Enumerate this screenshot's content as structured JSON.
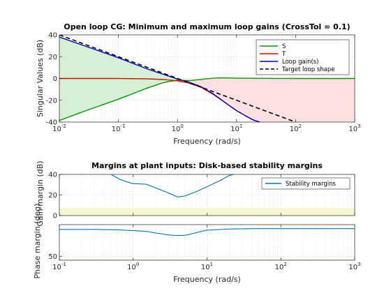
{
  "chart_data": [
    {
      "type": "line",
      "title": "Open loop CG: Minimum and maximum loop gains (CrossTol = 0.1)",
      "xlabel": "Frequency (rad/s)",
      "ylabel": "Singular Values (dB)",
      "xscale": "log",
      "xlim": [
        0.01,
        1000
      ],
      "ylim": [
        -40,
        40
      ],
      "xticks": [
        0.01,
        0.1,
        1,
        10,
        100,
        1000
      ],
      "yticks": [
        -40,
        -20,
        0,
        20,
        40
      ],
      "grid": true,
      "legend_position": "top-right",
      "series": [
        {
          "name": "S",
          "color": "#009900",
          "x": [
            0.01,
            0.03,
            0.1,
            0.3,
            0.6,
            1,
            1.6,
            2.5,
            4,
            6,
            10,
            30,
            100,
            1000
          ],
          "y": [
            -38.5,
            -29,
            -19,
            -9,
            -3.5,
            -1.5,
            -2,
            -0.8,
            0.3,
            0.6,
            0.3,
            0.1,
            0,
            0
          ]
        },
        {
          "name": "T",
          "color": "#e60000",
          "x": [
            0.01,
            0.1,
            0.3,
            0.6,
            1,
            1.5,
            2.5,
            4,
            6,
            10,
            15,
            20,
            25
          ],
          "y": [
            0,
            0,
            -0.3,
            -1,
            -2.2,
            -4,
            -8,
            -14.5,
            -21,
            -29.5,
            -35,
            -38.5,
            -40
          ]
        },
        {
          "name": "Loop gain(s)",
          "color": "#0000cc",
          "x": [
            0.01,
            0.03,
            0.1,
            0.3,
            0.6,
            1,
            1.5,
            2.5,
            4,
            6,
            10,
            15,
            20,
            25
          ],
          "y": [
            38,
            29,
            19,
            9,
            3.5,
            -0.5,
            -3,
            -7.5,
            -14,
            -21,
            -29.5,
            -35,
            -38.5,
            -40
          ]
        },
        {
          "name": "Target loop shape",
          "color": "#000000",
          "dash": "dashed",
          "x": [
            0.01,
            100
          ],
          "y": [
            40,
            -40
          ]
        }
      ],
      "shaded_regions": [
        {
          "color": "#d6f0d6",
          "between": [
            "S",
            "Loop gain(s)"
          ],
          "range": [
            0.01,
            1
          ]
        },
        {
          "color": "#fde0e0",
          "between": [
            "T",
            "S"
          ],
          "range": [
            1,
            1000
          ]
        }
      ]
    },
    {
      "type": "line",
      "title": "Margins at plant inputs: Disk-based stability margins",
      "subplot_ylabel": "Gain margin (dB)",
      "xscale": "log",
      "xlim": [
        0.1,
        1000
      ],
      "ylim": [
        0,
        40
      ],
      "yticks": [
        0,
        20,
        40
      ],
      "grid": true,
      "legend_position": "top-right",
      "series": [
        {
          "name": "Stability margins",
          "color": "#0072bd",
          "x": [
            0.5,
            0.65,
            0.8,
            1,
            1.5,
            2,
            3,
            4,
            5,
            7,
            10,
            15,
            20,
            23
          ],
          "y": [
            40,
            35.5,
            33,
            31,
            30.5,
            27,
            22,
            18,
            19,
            23,
            28,
            34,
            39,
            40
          ]
        }
      ],
      "shaded_band": {
        "color": "#f7f5d2",
        "y": [
          0,
          7.6
        ]
      }
    },
    {
      "type": "line",
      "xlabel": "Frequency (rad/s)",
      "ylabel": "Phase margin (deg)",
      "xscale": "log",
      "xlim": [
        0.1,
        1000
      ],
      "ylim": [
        45,
        90
      ],
      "yticks": [
        50
      ],
      "xticks": [
        0.1,
        1,
        10,
        100,
        1000
      ],
      "grid": true,
      "series": [
        {
          "name": "Stability margins",
          "color": "#0072bd",
          "x": [
            0.1,
            0.3,
            0.6,
            1,
            1.5,
            2,
            3,
            4,
            5,
            6,
            8,
            10,
            20,
            50,
            100,
            1000
          ],
          "y": [
            84,
            84,
            83.5,
            82.5,
            81.5,
            79.5,
            77,
            76.2,
            76.5,
            78,
            81,
            83,
            84.5,
            85,
            85,
            85
          ]
        }
      ],
      "shaded_band": {
        "color": "#f7f5d2",
        "y": [
          45,
          46.5
        ]
      }
    }
  ]
}
